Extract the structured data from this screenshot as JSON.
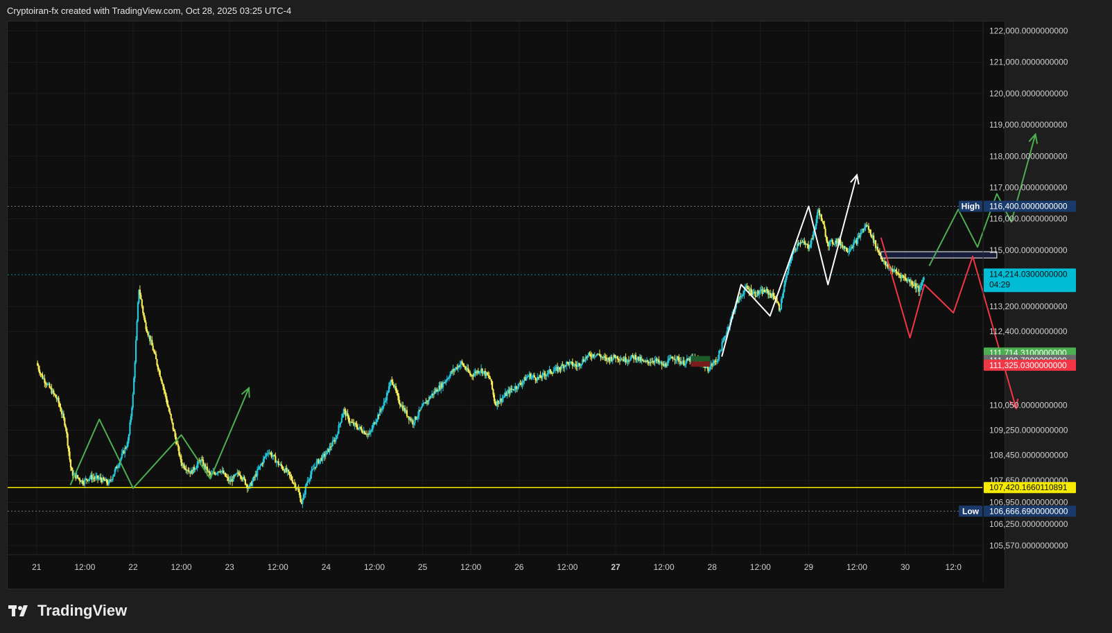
{
  "header": {
    "watermark": "Cryptoiran-fx created with TradingView.com, Oct 28, 2025 03:25 UTC-4"
  },
  "footer": {
    "logo_text": "TradingView"
  },
  "colors": {
    "background": "#0f0f0f",
    "up_candle": "#26c6da",
    "down_candle": "#f5eb5a",
    "support_line": "#f5eb00",
    "green_path": "#4caf50",
    "red_path": "#f23645",
    "white_path": "#ffffff",
    "current_badge": "#00bcd4",
    "high_low_badge": "#1a3a6b"
  },
  "chart_data": {
    "type": "candlestick",
    "x_tick_labels": [
      "21",
      "12:00",
      "22",
      "12:00",
      "23",
      "12:00",
      "24",
      "12:00",
      "25",
      "12:00",
      "26",
      "12:00",
      "27",
      "12:00",
      "28",
      "12:00",
      "29",
      "12:00",
      "30",
      "12:0"
    ],
    "y_tick_labels": [
      {
        "value": 122000,
        "label": "122,000.0000000000"
      },
      {
        "value": 121000,
        "label": "121,000.0000000000"
      },
      {
        "value": 120000,
        "label": "120,000.0000000000"
      },
      {
        "value": 119000,
        "label": "119,000.0000000000"
      },
      {
        "value": 118000,
        "label": "118,000.0000000000"
      },
      {
        "value": 117000,
        "label": "117,000.0000000000"
      },
      {
        "value": 116000,
        "label": "116,000.0000000000"
      },
      {
        "value": 115000,
        "label": "115,000.0000000000"
      },
      {
        "value": 113200,
        "label": "113,200.0000000000"
      },
      {
        "value": 112400,
        "label": "112,400.0000000000"
      },
      {
        "value": 110050,
        "label": "110,050.0000000000"
      },
      {
        "value": 109250,
        "label": "109,250.0000000000"
      },
      {
        "value": 108450,
        "label": "108,450.0000000000"
      },
      {
        "value": 107650,
        "label": "107,650.0000000000"
      },
      {
        "value": 106950,
        "label": "106,950.0000000000"
      },
      {
        "value": 106250,
        "label": "106,250.0000000000"
      },
      {
        "value": 105570,
        "label": "105,570.0000000000"
      }
    ],
    "price_badges": [
      {
        "name": "high",
        "tag": "High",
        "value": 116400,
        "label": "116,400.0000000000",
        "color": "#1a3a6b"
      },
      {
        "name": "current",
        "value": 114214.03,
        "label": "114,214.0300000000",
        "sublabel": "04:29",
        "color": "#00bcd4"
      },
      {
        "name": "green-level",
        "value": 111714.31,
        "label": "111,714.3100000000",
        "color": "#4caf50"
      },
      {
        "name": "gray-level",
        "value": 111480.79,
        "label": "111,480.7900000000",
        "color": "#6b6b6b"
      },
      {
        "name": "red-level",
        "value": 111325.03,
        "label": "111,325.0300000000",
        "color": "#f23645"
      },
      {
        "name": "support",
        "value": 107420.166011089,
        "label": "107,420.1660110891",
        "color": "#f5eb00"
      },
      {
        "name": "low",
        "tag": "Low",
        "value": 106666.69,
        "label": "106,666.6900000000",
        "color": "#1a3a6b"
      }
    ],
    "price_path": [
      [
        0.0,
        111400
      ],
      [
        0.05,
        111000
      ],
      [
        0.22,
        110200
      ],
      [
        0.3,
        109400
      ],
      [
        0.36,
        107900
      ],
      [
        0.48,
        107600
      ],
      [
        0.55,
        107750
      ],
      [
        0.66,
        107700
      ],
      [
        0.75,
        107550
      ],
      [
        0.85,
        108200
      ],
      [
        0.95,
        108900
      ],
      [
        1.0,
        110400
      ],
      [
        1.06,
        113800
      ],
      [
        1.12,
        112700
      ],
      [
        1.2,
        111900
      ],
      [
        1.3,
        110800
      ],
      [
        1.4,
        109500
      ],
      [
        1.5,
        108200
      ],
      [
        1.6,
        107900
      ],
      [
        1.7,
        108300
      ],
      [
        1.8,
        107800
      ],
      [
        1.9,
        108000
      ],
      [
        2.0,
        107600
      ],
      [
        2.1,
        107900
      ],
      [
        2.2,
        107400
      ],
      [
        2.3,
        108000
      ],
      [
        2.4,
        108600
      ],
      [
        2.5,
        108200
      ],
      [
        2.6,
        107900
      ],
      [
        2.7,
        107400
      ],
      [
        2.75,
        106900
      ],
      [
        2.8,
        107600
      ],
      [
        2.9,
        108200
      ],
      [
        3.0,
        108500
      ],
      [
        3.1,
        109000
      ],
      [
        3.18,
        109900
      ],
      [
        3.25,
        109500
      ],
      [
        3.35,
        109300
      ],
      [
        3.45,
        109100
      ],
      [
        3.5,
        109500
      ],
      [
        3.6,
        110100
      ],
      [
        3.68,
        110900
      ],
      [
        3.75,
        110200
      ],
      [
        3.85,
        109700
      ],
      [
        3.9,
        109500
      ],
      [
        4.0,
        110000
      ],
      [
        4.1,
        110400
      ],
      [
        4.2,
        110700
      ],
      [
        4.3,
        111100
      ],
      [
        4.4,
        111400
      ],
      [
        4.5,
        111000
      ],
      [
        4.6,
        111200
      ],
      [
        4.7,
        110900
      ],
      [
        4.75,
        110100
      ],
      [
        4.8,
        110200
      ],
      [
        4.9,
        110500
      ],
      [
        5.0,
        110700
      ],
      [
        5.1,
        111000
      ],
      [
        5.2,
        110900
      ],
      [
        5.3,
        111100
      ],
      [
        5.4,
        111200
      ],
      [
        5.5,
        111400
      ],
      [
        5.6,
        111300
      ],
      [
        5.7,
        111600
      ],
      [
        5.8,
        111700
      ],
      [
        5.9,
        111500
      ],
      [
        6.0,
        111600
      ],
      [
        6.1,
        111500
      ],
      [
        6.2,
        111600
      ],
      [
        6.3,
        111400
      ],
      [
        6.4,
        111500
      ],
      [
        6.5,
        111300
      ],
      [
        6.6,
        111600
      ],
      [
        6.7,
        111400
      ],
      [
        6.8,
        111550
      ],
      [
        6.9,
        111400
      ],
      [
        6.95,
        111200
      ],
      [
        7.05,
        111500
      ],
      [
        7.15,
        112400
      ],
      [
        7.25,
        113300
      ],
      [
        7.35,
        113800
      ],
      [
        7.45,
        113600
      ],
      [
        7.55,
        113700
      ],
      [
        7.65,
        113500
      ],
      [
        7.7,
        113100
      ],
      [
        7.75,
        113900
      ],
      [
        7.82,
        114800
      ],
      [
        7.9,
        115300
      ],
      [
        8.0,
        115100
      ],
      [
        8.05,
        115500
      ],
      [
        8.1,
        116300
      ],
      [
        8.15,
        115800
      ],
      [
        8.2,
        115200
      ],
      [
        8.3,
        115300
      ],
      [
        8.4,
        115000
      ],
      [
        8.5,
        115300
      ],
      [
        8.55,
        115600
      ],
      [
        8.6,
        115800
      ],
      [
        8.65,
        115500
      ],
      [
        8.7,
        115100
      ],
      [
        8.8,
        114500
      ],
      [
        8.9,
        114300
      ],
      [
        9.0,
        114100
      ],
      [
        9.1,
        113900
      ],
      [
        9.15,
        113700
      ],
      [
        9.2,
        114214
      ]
    ],
    "annotations": [
      {
        "color": "#4caf50",
        "points": [
          [
            0.35,
            107500
          ],
          [
            0.65,
            109600
          ],
          [
            1.0,
            107400
          ],
          [
            1.5,
            109100
          ],
          [
            1.8,
            107700
          ],
          [
            2.2,
            110600
          ]
        ]
      },
      {
        "color": "#ffffff",
        "points": [
          [
            7.1,
            111600
          ],
          [
            7.3,
            113900
          ],
          [
            7.6,
            112900
          ],
          [
            8.0,
            116400
          ],
          [
            8.2,
            113900
          ],
          [
            8.5,
            117400
          ]
        ]
      },
      {
        "color": "#4caf50",
        "points": [
          [
            9.25,
            114500
          ],
          [
            9.55,
            116300
          ],
          [
            9.75,
            115100
          ],
          [
            9.95,
            116800
          ],
          [
            10.1,
            115900
          ],
          [
            10.35,
            118700
          ]
        ]
      },
      {
        "color": "#f23645",
        "points": [
          [
            8.75,
            115400
          ],
          [
            9.05,
            112200
          ],
          [
            9.2,
            113900
          ],
          [
            9.5,
            113000
          ],
          [
            9.7,
            114800
          ],
          [
            10.15,
            109950
          ]
        ]
      }
    ],
    "zone": {
      "x0": 8.75,
      "x1": 9.95,
      "y0": 114750,
      "y1": 114950
    },
    "xlim": [
      -0.3,
      9.8
    ],
    "ylim": [
      105300,
      122300
    ]
  }
}
